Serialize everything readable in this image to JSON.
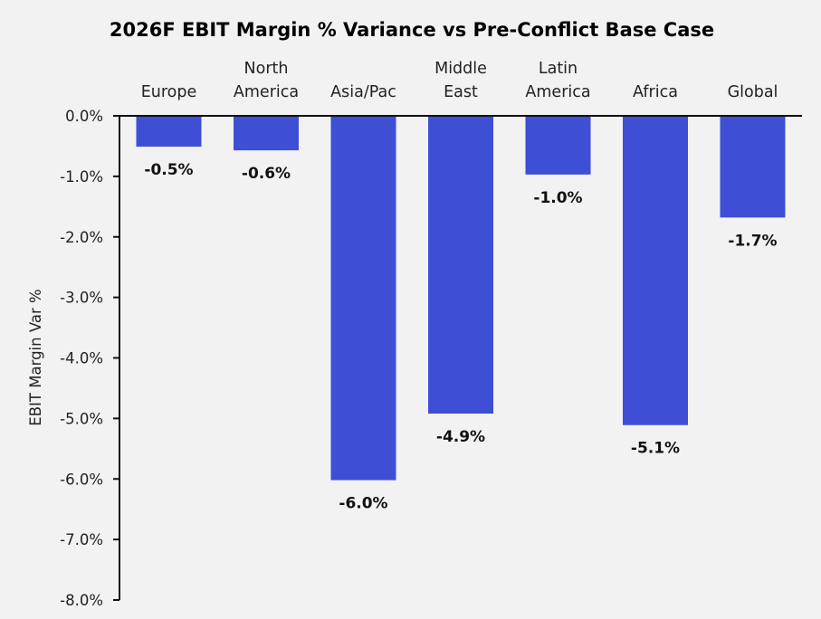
{
  "chart_data": {
    "type": "bar",
    "title": "2026F EBIT Margin % Variance vs Pre-Conflict Base Case",
    "xlabel": "",
    "ylabel": "EBIT Margin Var %",
    "categories": [
      [
        "Europe"
      ],
      [
        "North",
        "America"
      ],
      [
        "Asia/Pac"
      ],
      [
        "Middle",
        "East"
      ],
      [
        "Latin",
        "America"
      ],
      [
        "Africa"
      ],
      [
        "Global"
      ]
    ],
    "category_names": [
      "Europe",
      "North America",
      "Asia/Pac",
      "Middle East",
      "Latin America",
      "Africa",
      "Global"
    ],
    "values": [
      -0.51,
      -0.57,
      -6.02,
      -4.92,
      -0.97,
      -5.11,
      -1.68
    ],
    "data_labels": [
      "-0.5%",
      "-0.6%",
      "-6.0%",
      "-4.9%",
      "-1.0%",
      "-5.1%",
      "-1.7%"
    ],
    "ylim": [
      -8.0,
      0.0
    ],
    "yticks": [
      0,
      -1,
      -2,
      -3,
      -4,
      -5,
      -6,
      -7,
      -8
    ],
    "ytick_labels": [
      "0.0%",
      "-1.0%",
      "-2.0%",
      "-3.0%",
      "-4.0%",
      "-5.0%",
      "-6.0%",
      "-7.0%",
      "-8.0%"
    ],
    "category_axis_position": "top",
    "grid": false,
    "legend": "none",
    "bar_color": "#3e4fd6"
  }
}
